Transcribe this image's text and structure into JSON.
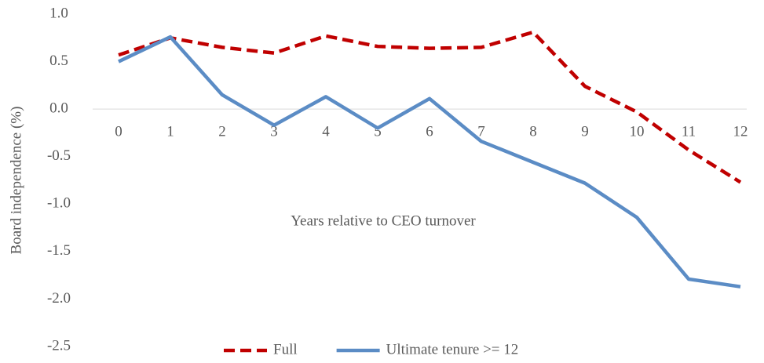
{
  "chart_data": {
    "type": "line",
    "x_label": "Years relative to CEO turnover",
    "y_label": "Board independence (%)",
    "categories": [
      "0",
      "1",
      "2",
      "3",
      "4",
      "5",
      "6",
      "7",
      "8",
      "9",
      "10",
      "11",
      "12"
    ],
    "series": [
      {
        "name": "Full",
        "color": "#c00000",
        "dash": true,
        "values": [
          0.57,
          0.75,
          0.65,
          0.59,
          0.77,
          0.66,
          0.64,
          0.65,
          0.81,
          0.24,
          -0.03,
          -0.43,
          -0.77
        ]
      },
      {
        "name": "Ultimate tenure >= 12",
        "color": "#5b8cc5",
        "dash": false,
        "values": [
          0.5,
          0.76,
          0.15,
          -0.17,
          0.13,
          -0.2,
          0.11,
          -0.34,
          -0.56,
          -0.78,
          -1.14,
          -1.79,
          -1.87
        ]
      }
    ],
    "ylim": [
      -2.5,
      1.0
    ],
    "yticks": [
      {
        "value": 1.0,
        "label": "1.0"
      },
      {
        "value": 0.5,
        "label": "0.5"
      },
      {
        "value": 0.0,
        "label": "0.0"
      },
      {
        "value": -0.5,
        "label": "-0.5"
      },
      {
        "value": -1.0,
        "label": "-1.0"
      },
      {
        "value": -1.5,
        "label": "-1.5"
      },
      {
        "value": -2.0,
        "label": "-2.0"
      },
      {
        "value": -2.5,
        "label": "-2.5"
      }
    ],
    "legend": "bottom"
  }
}
